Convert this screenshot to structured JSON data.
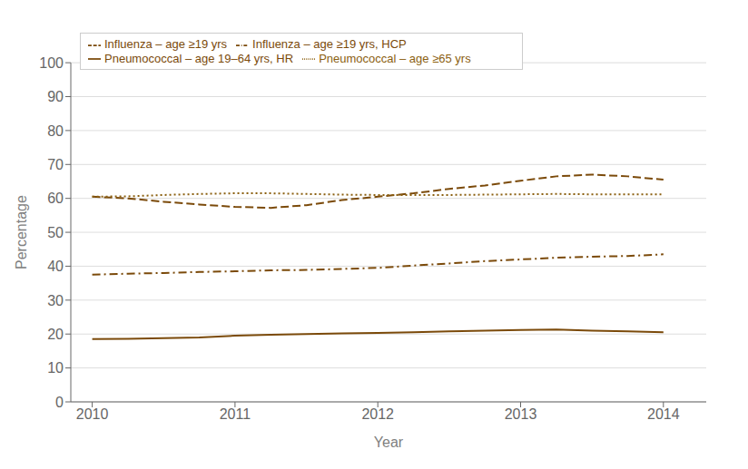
{
  "chart_data": {
    "type": "line",
    "x": [
      2010,
      2010.25,
      2010.5,
      2010.75,
      2011,
      2011.25,
      2011.5,
      2011.75,
      2012,
      2012.25,
      2012.5,
      2012.75,
      2013,
      2013.25,
      2013.5,
      2013.75,
      2014
    ],
    "series": [
      {
        "name": "Influenza – age ≥19 yrs",
        "color": "#7B4A0A",
        "line_style": "dashed",
        "values": [
          60.5,
          60.0,
          59.0,
          58.2,
          57.5,
          57.2,
          58.0,
          59.5,
          60.5,
          61.5,
          62.8,
          63.8,
          65.2,
          66.5,
          67.0,
          66.5,
          65.5
        ]
      },
      {
        "name": "Influenza – age ≥19 yrs, HCP",
        "color": "#7B4A0A",
        "line_style": "dashdot",
        "values": [
          37.5,
          37.8,
          38.0,
          38.3,
          38.5,
          38.8,
          38.9,
          39.2,
          39.5,
          40.2,
          40.8,
          41.5,
          42.0,
          42.5,
          42.8,
          43.0,
          43.5
        ]
      },
      {
        "name": "Pneumococcal – age 19–64 yrs, HR",
        "color": "#7B4A0A",
        "line_style": "solid",
        "values": [
          18.5,
          18.6,
          18.8,
          19.0,
          19.5,
          19.8,
          20.0,
          20.2,
          20.3,
          20.5,
          20.8,
          21.0,
          21.2,
          21.3,
          21.0,
          20.8,
          20.5
        ]
      },
      {
        "name": "Pneumococcal – age ≥65 yrs",
        "color": "#8B6010",
        "line_style": "dotted",
        "values": [
          60.5,
          60.6,
          61.0,
          61.3,
          61.5,
          61.5,
          61.3,
          61.1,
          61.0,
          61.0,
          61.0,
          61.1,
          61.2,
          61.3,
          61.2,
          61.2,
          61.2
        ]
      }
    ],
    "xlabel": "Year",
    "ylabel": "Percentage",
    "xlim": [
      2009.85,
      2014.3
    ],
    "xticks": [
      2010,
      2011,
      2012,
      2013,
      2014
    ],
    "ylim": [
      0,
      100
    ],
    "yticks": [
      0,
      10,
      20,
      30,
      40,
      50,
      60,
      70,
      80,
      90,
      100
    ],
    "grid": true,
    "legend": "upper left"
  }
}
